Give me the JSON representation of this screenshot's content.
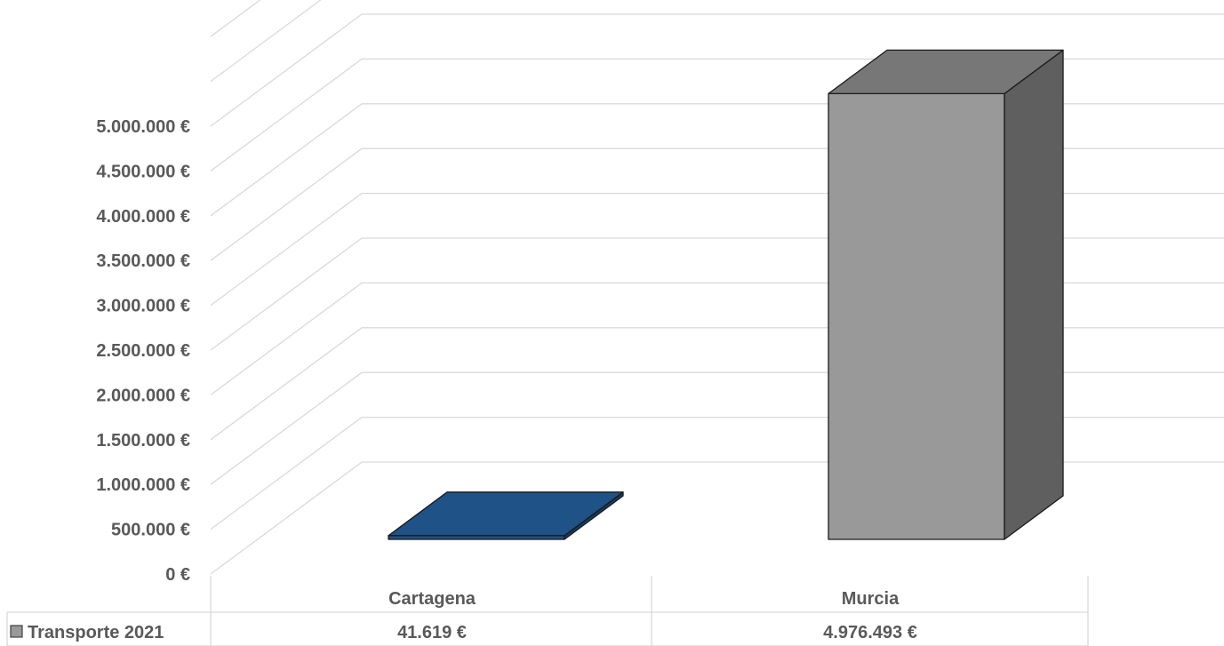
{
  "chart_data": {
    "type": "bar",
    "categories": [
      "Cartagena",
      "Murcia"
    ],
    "series": [
      {
        "name": "Transporte 2021",
        "values": [
          41619,
          4976493
        ],
        "value_labels": [
          "41.619 €",
          "4.976.493 €"
        ]
      }
    ],
    "ylim": [
      0,
      5000000
    ],
    "y_ticks": [
      "0 €",
      "500.000 €",
      "1.000.000 €",
      "1.500.000 €",
      "2.000.000 €",
      "2.500.000 €",
      "3.000.000 €",
      "3.500.000 €",
      "4.000.000 €",
      "4.500.000 €",
      "5.000.000 €"
    ],
    "grid": true,
    "legend_placement": "data-table",
    "style": "3d-column"
  },
  "colors": {
    "cartagena_bar": "#1f5286",
    "murcia_bar": "#999999",
    "gridline": "#d9d9d9",
    "text": "#595959"
  }
}
